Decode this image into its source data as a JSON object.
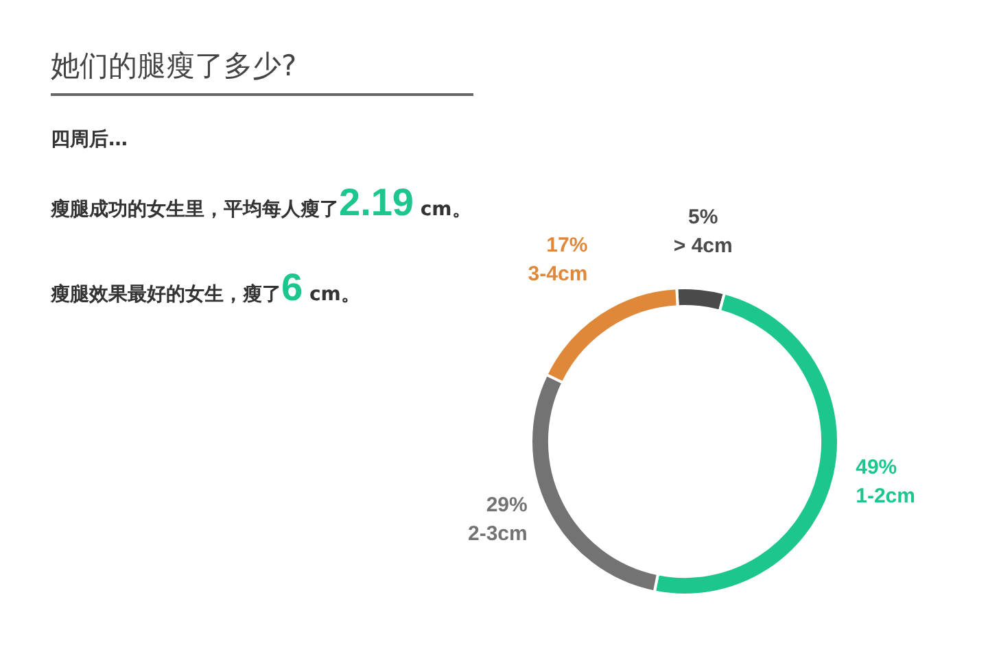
{
  "chart_data": {
    "type": "donut",
    "title": "她们的腿瘦了多少?",
    "subtitle": "四周后…",
    "annotations": [
      "瘦腿成功的女生里，平均每人瘦了2.19 cm。",
      "瘦腿效果最好的女生，瘦了6 cm。"
    ],
    "categories": [
      "> 4cm",
      "1-2cm",
      "2-3cm",
      "3-4cm"
    ],
    "values": [
      5,
      49,
      29,
      17
    ],
    "value_labels": [
      "5%",
      "49%",
      "29%",
      "17%"
    ],
    "colors": [
      "#4a4a4a",
      "#1dc68c",
      "#737373",
      "#e0883a"
    ],
    "legend": false
  }
}
